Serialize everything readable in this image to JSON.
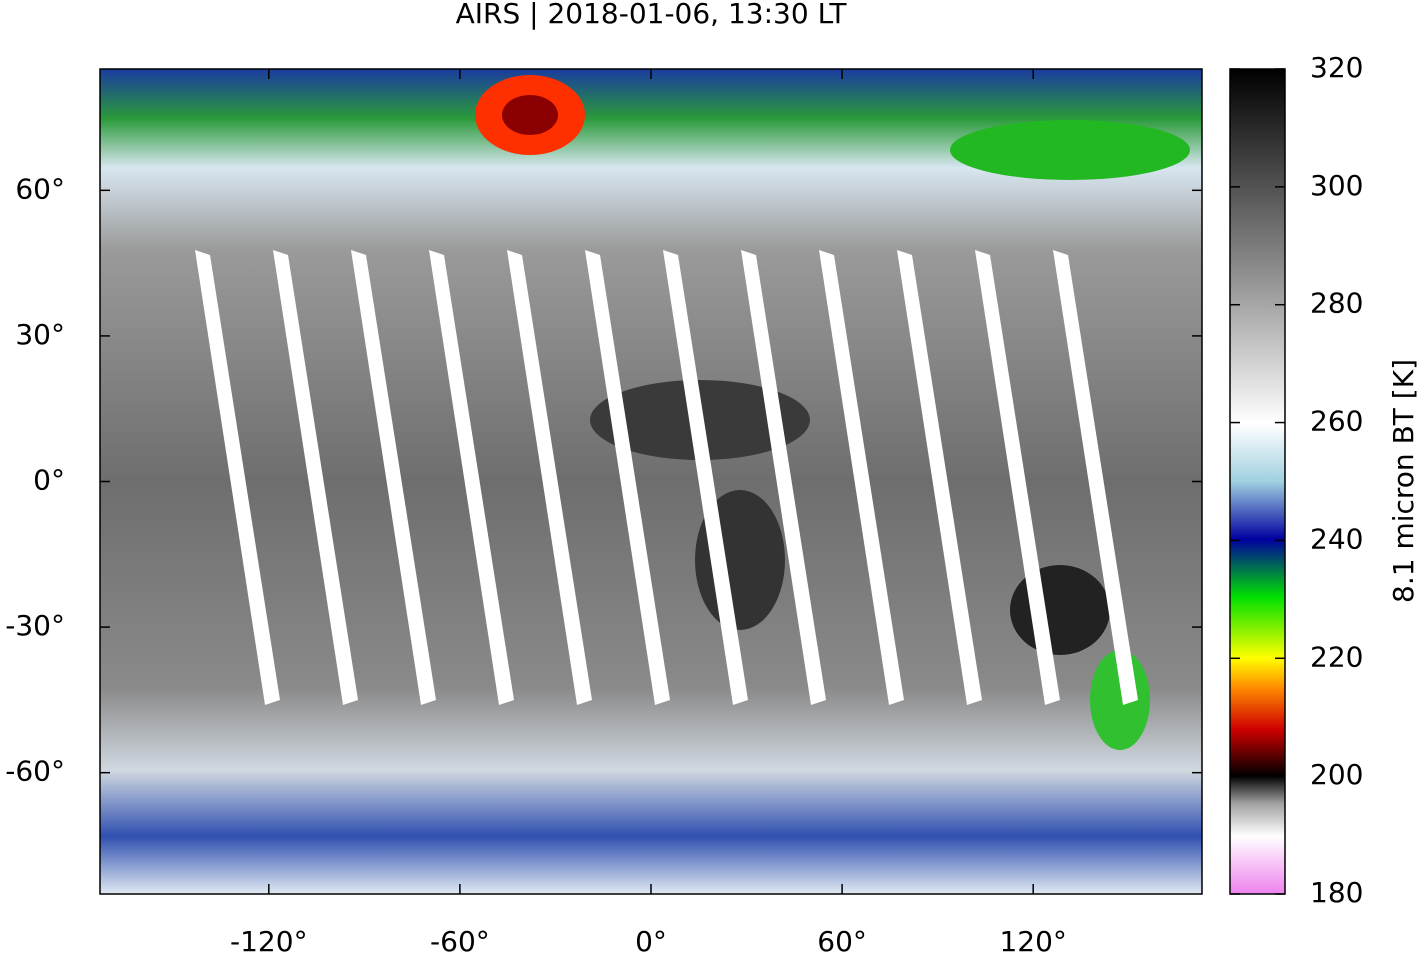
{
  "chart_data": {
    "type": "map",
    "title": "AIRS | 2018-01-06, 13:30 LT",
    "xlim": [
      -173,
      173
    ],
    "ylim": [
      -85,
      85
    ],
    "xticks": [
      {
        "value": -120,
        "label": "-120°"
      },
      {
        "value": -60,
        "label": "-60°"
      },
      {
        "value": 0,
        "label": "0°"
      },
      {
        "value": 60,
        "label": "60°"
      },
      {
        "value": 120,
        "label": "120°"
      }
    ],
    "yticks": [
      {
        "value": -60,
        "label": "-60°"
      },
      {
        "value": -30,
        "label": "-30°"
      },
      {
        "value": 0,
        "label": "0°"
      },
      {
        "value": 30,
        "label": "30°"
      },
      {
        "value": 60,
        "label": "60°"
      }
    ],
    "colorbar": {
      "label": "8.1 micron BT [K]",
      "lim": [
        180,
        320
      ],
      "ticks": [
        180,
        200,
        220,
        240,
        260,
        280,
        300,
        320
      ]
    }
  }
}
